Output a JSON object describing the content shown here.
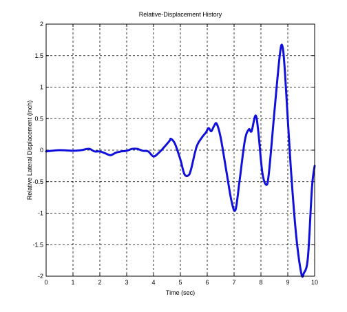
{
  "chart_data": {
    "type": "line",
    "title": "Relative-Displacement History",
    "xlabel": "Time (sec)",
    "ylabel": "Relative Lateral Displacement (inch)",
    "xlim": [
      0,
      10
    ],
    "ylim": [
      -2,
      2
    ],
    "x_ticks": [
      "0",
      "1",
      "2",
      "3",
      "4",
      "5",
      "6",
      "7",
      "8",
      "9",
      "10"
    ],
    "y_ticks": [
      "2",
      "1.5",
      "1",
      "0.5",
      "0",
      "-0.5",
      "-1",
      "-1.5",
      "-2"
    ],
    "grid": true,
    "line_color": "#1010dd",
    "series": [
      {
        "x": [
          0,
          0.5,
          1.0,
          1.3,
          1.6,
          1.8,
          2.0,
          2.2,
          2.4,
          2.6,
          2.8,
          3.0,
          3.2,
          3.4,
          3.6,
          3.8,
          4.0,
          4.2,
          4.4,
          4.6,
          4.65,
          4.8,
          5.0,
          5.15,
          5.3,
          5.4,
          5.6,
          5.8,
          5.95,
          6.05,
          6.15,
          6.25,
          6.35,
          6.5,
          6.7,
          6.9,
          7.05,
          7.2,
          7.4,
          7.55,
          7.65,
          7.8,
          7.9,
          8.05,
          8.2,
          8.3,
          8.5,
          8.7,
          8.8,
          8.9,
          9.1,
          9.3,
          9.5,
          9.6,
          9.75,
          9.9,
          10.0
        ],
        "y": [
          -0.02,
          0.0,
          -0.01,
          0.0,
          0.02,
          -0.02,
          -0.02,
          -0.05,
          -0.08,
          -0.04,
          -0.02,
          -0.01,
          0.02,
          0.02,
          -0.01,
          -0.02,
          -0.1,
          -0.04,
          0.05,
          0.15,
          0.18,
          0.1,
          -0.15,
          -0.38,
          -0.4,
          -0.3,
          0.05,
          0.2,
          0.28,
          0.35,
          0.3,
          0.38,
          0.42,
          0.2,
          -0.3,
          -0.8,
          -0.95,
          -0.5,
          0.15,
          0.33,
          0.3,
          0.55,
          0.3,
          -0.35,
          -0.55,
          -0.35,
          0.6,
          1.5,
          1.65,
          1.2,
          -0.2,
          -1.3,
          -1.95,
          -1.95,
          -1.7,
          -0.6,
          -0.25
        ]
      }
    ]
  }
}
